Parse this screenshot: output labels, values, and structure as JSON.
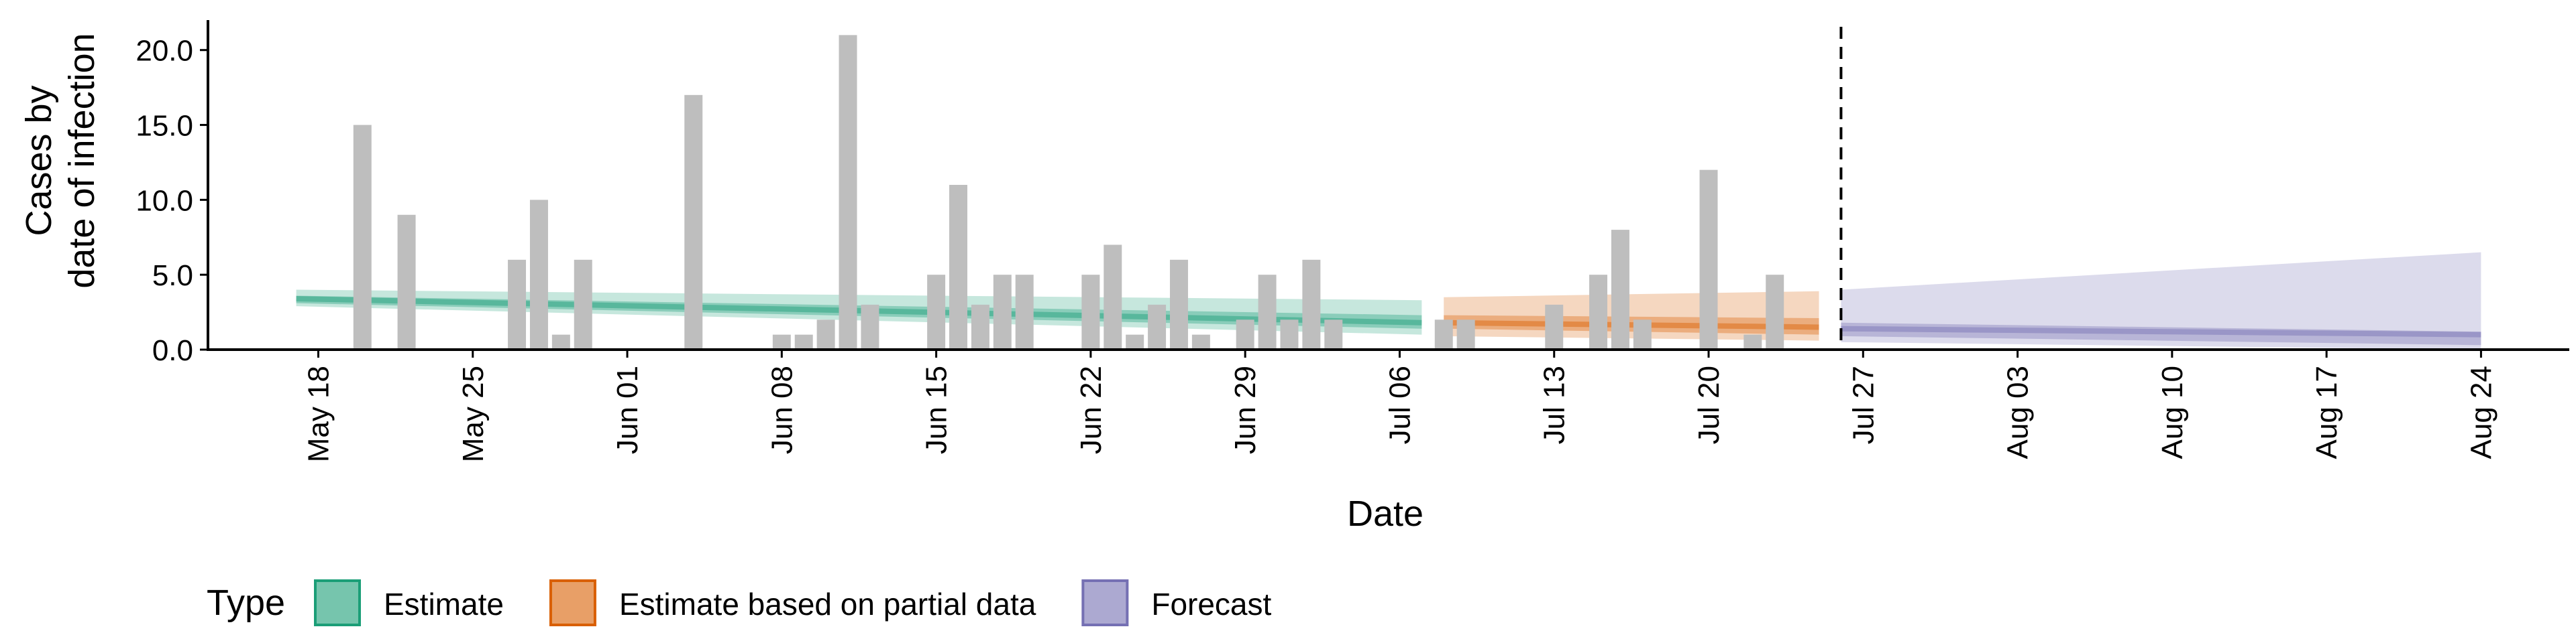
{
  "chart_data": {
    "type": "bar",
    "xlabel": "Date",
    "ylabel": [
      "Cases by",
      "date of infection"
    ],
    "ylim": [
      0,
      22
    ],
    "yticks": [
      0,
      5,
      10,
      15,
      20
    ],
    "ytick_labels": [
      "0.0",
      "5.0",
      "10.0",
      "15.0",
      "20.0"
    ],
    "xlim": [
      "2020-05-13",
      "2020-08-28"
    ],
    "x_tick_dates": [
      "2020-05-18",
      "2020-05-25",
      "2020-06-01",
      "2020-06-08",
      "2020-06-15",
      "2020-06-22",
      "2020-06-29",
      "2020-07-06",
      "2020-07-13",
      "2020-07-20",
      "2020-07-27",
      "2020-08-03",
      "2020-08-10",
      "2020-08-17",
      "2020-08-24"
    ],
    "x_tick_labels": [
      "May 18",
      "May 25",
      "Jun 01",
      "Jun 08",
      "Jun 15",
      "Jun 22",
      "Jun 29",
      "Jul 06",
      "Jul 13",
      "Jul 20",
      "Jul 27",
      "Aug 03",
      "Aug 10",
      "Aug 17",
      "Aug 24"
    ],
    "vline_date": "2020-07-26",
    "grid": false,
    "legend_position": "bottom",
    "legend_title": "Type",
    "bars": {
      "color": "#bebebe",
      "x": [
        "2020-05-20",
        "2020-05-22",
        "2020-05-27",
        "2020-05-28",
        "2020-05-29",
        "2020-05-30",
        "2020-06-04",
        "2020-06-08",
        "2020-06-09",
        "2020-06-10",
        "2020-06-11",
        "2020-06-12",
        "2020-06-15",
        "2020-06-16",
        "2020-06-17",
        "2020-06-18",
        "2020-06-19",
        "2020-06-22",
        "2020-06-23",
        "2020-06-24",
        "2020-06-25",
        "2020-06-26",
        "2020-06-27",
        "2020-06-29",
        "2020-06-30",
        "2020-07-01",
        "2020-07-02",
        "2020-07-03",
        "2020-07-08",
        "2020-07-09",
        "2020-07-13",
        "2020-07-15",
        "2020-07-16",
        "2020-07-17",
        "2020-07-20",
        "2020-07-22",
        "2020-07-23"
      ],
      "y": [
        15,
        9,
        6,
        10,
        1,
        6,
        17,
        1,
        1,
        2,
        21,
        3,
        5,
        11,
        3,
        5,
        5,
        5,
        7,
        1,
        3,
        6,
        1,
        2,
        5,
        2,
        6,
        2,
        2,
        2,
        3,
        5,
        8,
        2,
        12,
        1,
        5
      ]
    },
    "series": [
      {
        "name": "Estimate",
        "color": "#1b9e77",
        "x": [
          "2020-05-17",
          "2020-07-07"
        ],
        "median": [
          3.4,
          1.8
        ],
        "inner_low": [
          3.1,
          1.4
        ],
        "inner_high": [
          3.6,
          2.3
        ],
        "outer_low": [
          2.9,
          1.0
        ],
        "outer_high": [
          4.0,
          3.3
        ]
      },
      {
        "name": "Estimate based on partial data",
        "color": "#d95f02",
        "x": [
          "2020-07-08",
          "2020-07-25"
        ],
        "median": [
          1.8,
          1.5
        ],
        "inner_low": [
          1.4,
          1.0
        ],
        "inner_high": [
          2.3,
          2.1
        ],
        "outer_low": [
          0.9,
          0.6
        ],
        "outer_high": [
          3.5,
          3.9
        ]
      },
      {
        "name": "Forecast",
        "color": "#7570b3",
        "x": [
          "2020-07-26",
          "2020-08-24"
        ],
        "median": [
          1.4,
          1.0
        ],
        "inner_low": [
          0.9,
          0.3
        ],
        "inner_high": [
          1.8,
          1.2
        ],
        "outer_low": [
          0.5,
          0.0
        ],
        "outer_high": [
          4.0,
          6.5
        ]
      }
    ]
  }
}
